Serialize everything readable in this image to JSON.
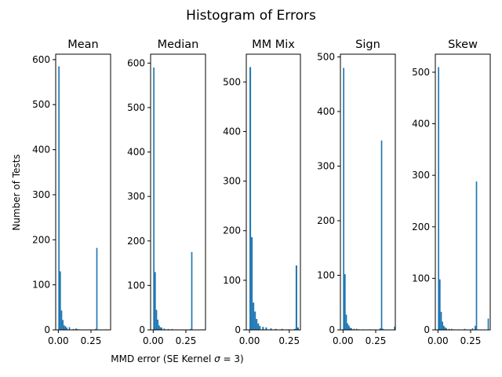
{
  "figure": {
    "title": "Histogram of Errors",
    "xlabel": "MMD error (SE Kernel $\\sigma = 3$)",
    "xlabel_parts": {
      "text": "MMD error (SE Kernel ",
      "symbol": "σ",
      "rest": " = 3)"
    },
    "ylabel": "Number of Tests",
    "colors": {
      "bar": "#1f77b4",
      "axis": "#000000",
      "background": "#ffffff"
    }
  },
  "chart_data": [
    {
      "type": "bar",
      "title": "Mean",
      "bin_width": 0.01,
      "bins": [
        0.0,
        0.01,
        0.02,
        0.03,
        0.04,
        0.05,
        0.06,
        0.08,
        0.11,
        0.13,
        0.14,
        0.16,
        0.2,
        0.23,
        0.28,
        0.29,
        0.36
      ],
      "values": [
        585,
        130,
        43,
        22,
        10,
        8,
        5,
        6,
        2,
        3,
        2,
        1,
        1,
        1,
        2,
        182,
        1
      ],
      "xlim": [
        -0.02,
        0.4
      ],
      "ylim": [
        0,
        612
      ],
      "xticks": [
        0.0,
        0.25
      ],
      "xtick_labels": [
        "0.00",
        "0.25"
      ],
      "yticks": [
        0,
        100,
        200,
        300,
        400,
        500,
        600
      ],
      "ytick_labels": [
        "0",
        "100",
        "200",
        "300",
        "400",
        "500",
        "600"
      ]
    },
    {
      "type": "bar",
      "title": "Median",
      "bin_width": 0.01,
      "bins": [
        0.0,
        0.01,
        0.02,
        0.03,
        0.04,
        0.05,
        0.06,
        0.08,
        0.11,
        0.14,
        0.18,
        0.22,
        0.28,
        0.29,
        0.37
      ],
      "values": [
        590,
        130,
        45,
        23,
        10,
        6,
        5,
        3,
        2,
        2,
        1,
        1,
        2,
        175,
        1
      ],
      "xlim": [
        -0.02,
        0.4
      ],
      "ylim": [
        0,
        620
      ],
      "xticks": [
        0.0,
        0.25
      ],
      "xtick_labels": [
        "0.00",
        "0.25"
      ],
      "yticks": [
        0,
        100,
        200,
        300,
        400,
        500,
        600
      ],
      "ytick_labels": [
        "0",
        "100",
        "200",
        "300",
        "400",
        "500",
        "600"
      ]
    },
    {
      "type": "bar",
      "title": "MM Mix",
      "bin_width": 0.01,
      "bins": [
        0.0,
        0.01,
        0.02,
        0.03,
        0.04,
        0.05,
        0.06,
        0.08,
        0.1,
        0.13,
        0.16,
        0.2,
        0.24,
        0.28,
        0.29,
        0.3
      ],
      "values": [
        530,
        187,
        55,
        37,
        22,
        13,
        8,
        6,
        5,
        3,
        2,
        2,
        1,
        2,
        130,
        5
      ],
      "xlim": [
        -0.02,
        0.32
      ],
      "ylim": [
        0,
        556
      ],
      "xticks": [
        0.0,
        0.25
      ],
      "xtick_labels": [
        "0.00",
        "0.25"
      ],
      "yticks": [
        0,
        100,
        200,
        300,
        400,
        500
      ],
      "ytick_labels": [
        "0",
        "100",
        "200",
        "300",
        "400",
        "500"
      ]
    },
    {
      "type": "bar",
      "title": "Sign",
      "bin_width": 0.01,
      "bins": [
        0.0,
        0.01,
        0.02,
        0.03,
        0.04,
        0.05,
        0.06,
        0.08,
        0.1,
        0.12,
        0.15,
        0.2,
        0.28,
        0.29,
        0.3,
        0.39
      ],
      "values": [
        480,
        102,
        28,
        12,
        8,
        4,
        3,
        2,
        2,
        1,
        1,
        1,
        3,
        347,
        2,
        6
      ],
      "xlim": [
        -0.02,
        0.4
      ],
      "ylim": [
        0,
        505
      ],
      "xticks": [
        0.0,
        0.25
      ],
      "xtick_labels": [
        "0.00",
        "0.25"
      ],
      "yticks": [
        0,
        100,
        200,
        300,
        400,
        500
      ],
      "ytick_labels": [
        "0",
        "100",
        "200",
        "300",
        "400",
        "500"
      ]
    },
    {
      "type": "bar",
      "title": "Skew",
      "bin_width": 0.01,
      "bins": [
        0.0,
        0.01,
        0.02,
        0.03,
        0.04,
        0.05,
        0.06,
        0.08,
        0.1,
        0.12,
        0.15,
        0.2,
        0.26,
        0.28,
        0.29,
        0.38
      ],
      "values": [
        510,
        98,
        35,
        16,
        8,
        5,
        3,
        2,
        2,
        1,
        1,
        2,
        3,
        8,
        288,
        22
      ],
      "xlim": [
        -0.02,
        0.4
      ],
      "ylim": [
        0,
        535
      ],
      "xticks": [
        0.0,
        0.25
      ],
      "xtick_labels": [
        "0.00",
        "0.25"
      ],
      "yticks": [
        0,
        100,
        200,
        300,
        400,
        500
      ],
      "ytick_labels": [
        "0",
        "100",
        "200",
        "300",
        "400",
        "500"
      ]
    }
  ]
}
